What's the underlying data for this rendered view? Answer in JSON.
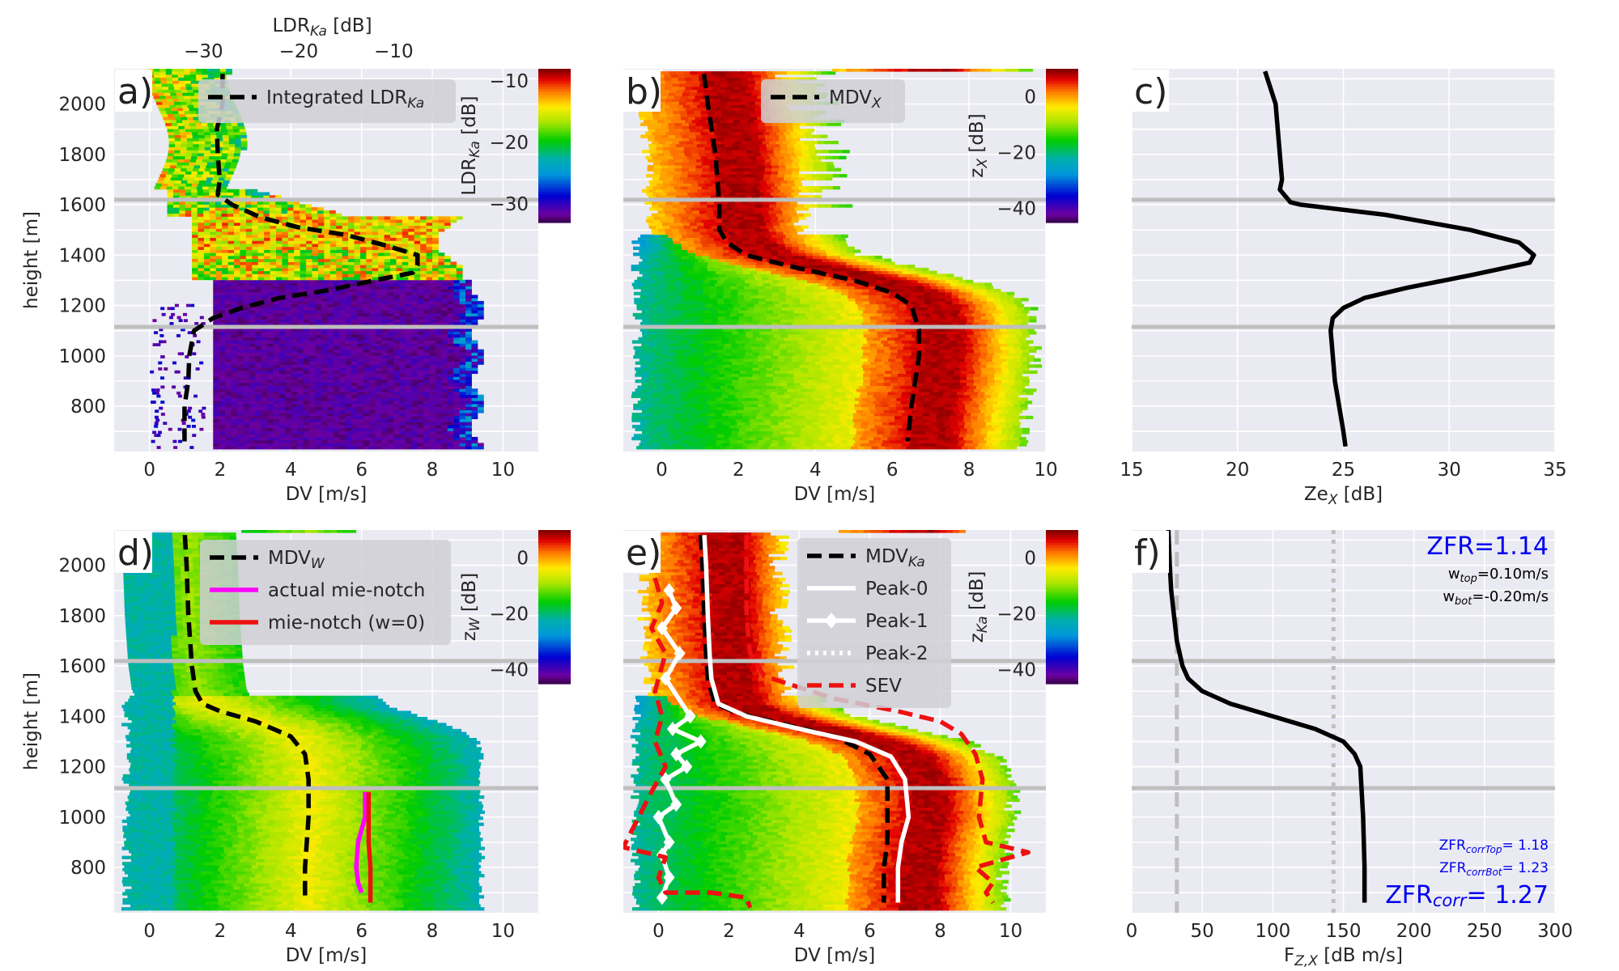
{
  "figure": {
    "panels_label_a": "a)",
    "panels_label_b": "b)",
    "panels_label_c": "c)",
    "panels_label_d": "d)",
    "panels_label_e": "e)",
    "panels_label_f": "f)"
  },
  "colors": {
    "plot_bg": "#eaeaf2",
    "grid": "#ffffff",
    "hline": "#bfbfbf",
    "text": "#262626",
    "blue_text": "#0000ee",
    "magenta": "#ff00ff",
    "red": "#ee1111"
  },
  "chart_data": [
    {
      "id": "a",
      "type": "heatmap",
      "xlabel": "DV [m/s]",
      "ylabel": "height [m]",
      "xlim": [
        -1,
        11
      ],
      "ylim": [
        620,
        2140
      ],
      "xticks": [
        0,
        2,
        4,
        6,
        8,
        10
      ],
      "yticks": [
        800,
        1000,
        1200,
        1400,
        1600,
        1800,
        2000
      ],
      "top_axis": {
        "label": "LDR",
        "label_sub": "Ka",
        "label_unit": " [dB]",
        "ticks": [
          -30,
          -20,
          -10
        ],
        "tick_labels": [
          "−30",
          "−20",
          "−10"
        ],
        "range": [
          -39.4,
          5.2
        ]
      },
      "colorbar": {
        "label": "LDR",
        "label_sub": "Ka",
        "label_unit": " [dB]",
        "ticks": [
          -30,
          -20,
          -10
        ],
        "tick_labels": [
          "−30",
          "−20",
          "−10"
        ],
        "range": [
          -33,
          -8
        ]
      },
      "hlines": [
        1620,
        1115
      ],
      "series": [
        {
          "name": "Integrated LDR",
          "name_sub": "Ka",
          "style": "dashed",
          "color": "#000000",
          "x_top": [
            -28,
            -28,
            -28.6,
            -28.5,
            -28.3,
            -28.5,
            -27,
            -24,
            -20,
            -15,
            -11,
            -7.5,
            -7.5,
            -8,
            -12,
            -17,
            -22,
            -26,
            -29,
            -31,
            -31.5,
            -31.6,
            -32,
            -32
          ],
          "y": [
            2120,
            2000,
            1900,
            1800,
            1700,
            1640,
            1600,
            1550,
            1510,
            1480,
            1440,
            1400,
            1360,
            1330,
            1300,
            1260,
            1230,
            1190,
            1150,
            1100,
            1000,
            900,
            800,
            660
          ]
        }
      ]
    },
    {
      "id": "b",
      "type": "heatmap",
      "xlabel": "DV [m/s]",
      "xlim": [
        -1,
        10
      ],
      "ylim": [
        620,
        2140
      ],
      "xticks": [
        0,
        2,
        4,
        6,
        8,
        10
      ],
      "colorbar": {
        "label": "z",
        "label_sub": "X",
        "label_unit": " [dB]",
        "ticks": [
          0,
          -20,
          -40
        ],
        "tick_labels": [
          "0",
          "−20",
          "−40"
        ],
        "range": [
          -45,
          10
        ]
      },
      "hlines": [
        1620,
        1115
      ],
      "series": [
        {
          "name": "MDV",
          "name_sub": "X",
          "style": "dashed",
          "color": "#000000",
          "x": [
            1.1,
            1.2,
            1.4,
            1.5,
            1.5,
            1.7,
            2.2,
            3.5,
            5.0,
            6.0,
            6.5,
            6.7,
            6.7,
            6.6,
            6.5,
            6.4
          ],
          "y": [
            2120,
            2000,
            1800,
            1600,
            1500,
            1450,
            1400,
            1350,
            1300,
            1250,
            1200,
            1100,
            1000,
            900,
            800,
            660
          ]
        }
      ]
    },
    {
      "id": "c",
      "type": "line",
      "xlabel": "Ze",
      "xlabel_sub": "X",
      "xlabel_unit": " [dB]",
      "xlim": [
        15,
        35
      ],
      "ylim": [
        620,
        2140
      ],
      "xticks": [
        15,
        20,
        25,
        30,
        35
      ],
      "hlines": [
        1620,
        1115
      ],
      "series": [
        {
          "name": "",
          "color": "#000000",
          "x": [
            21.3,
            21.8,
            21.9,
            22.0,
            22.1,
            22.0,
            22.3,
            22.5,
            23.0,
            27,
            31,
            33.3,
            34.0,
            33.8,
            31,
            28,
            26,
            25,
            24.5,
            24.4,
            24.5,
            24.6,
            24.8,
            25.0,
            25.1
          ],
          "y": [
            2130,
            2000,
            1900,
            1800,
            1700,
            1660,
            1630,
            1610,
            1600,
            1560,
            1500,
            1450,
            1400,
            1370,
            1320,
            1270,
            1230,
            1190,
            1150,
            1100,
            1000,
            900,
            800,
            700,
            640
          ]
        }
      ]
    },
    {
      "id": "d",
      "type": "heatmap",
      "xlabel": "DV [m/s]",
      "ylabel": "height [m]",
      "xlim": [
        -1,
        11
      ],
      "ylim": [
        620,
        2140
      ],
      "xticks": [
        0,
        2,
        4,
        6,
        8,
        10
      ],
      "yticks": [
        800,
        1000,
        1200,
        1400,
        1600,
        1800,
        2000
      ],
      "colorbar": {
        "label": "z",
        "label_sub": "W",
        "label_unit": " [dB]",
        "ticks": [
          0,
          -20,
          -40
        ],
        "tick_labels": [
          "0",
          "−20",
          "−40"
        ],
        "range": [
          -45,
          10
        ]
      },
      "hlines": [
        1620,
        1115
      ],
      "series": [
        {
          "name": "MDV",
          "name_sub": "W",
          "style": "dashed",
          "color": "#000000",
          "x": [
            1.0,
            1.05,
            1.1,
            1.2,
            1.3,
            1.5,
            2.0,
            3.0,
            4.0,
            4.4,
            4.5,
            4.5,
            4.45,
            4.4,
            4.4
          ],
          "y": [
            2120,
            2000,
            1800,
            1600,
            1500,
            1450,
            1420,
            1380,
            1320,
            1250,
            1150,
            1000,
            900,
            800,
            660
          ]
        },
        {
          "name": "actual mie-notch",
          "style": "solid",
          "color": "#ff00ff",
          "x": [
            6.1,
            6.1,
            6.0,
            5.9,
            5.85,
            5.9,
            6.0
          ],
          "y": [
            1100,
            1000,
            950,
            900,
            800,
            740,
            700
          ]
        },
        {
          "name": "mie-notch (w=0)",
          "style": "solid",
          "color": "#ee1111",
          "x": [
            6.2,
            6.2,
            6.2,
            6.25,
            6.25
          ],
          "y": [
            1100,
            1000,
            900,
            800,
            660
          ]
        }
      ]
    },
    {
      "id": "e",
      "type": "heatmap",
      "xlabel": "DV [m/s]",
      "xlim": [
        -1,
        11
      ],
      "ylim": [
        620,
        2140
      ],
      "xticks": [
        0,
        2,
        4,
        6,
        8,
        10
      ],
      "colorbar": {
        "label": "z",
        "label_sub": "Ka",
        "label_unit": " [dB]",
        "ticks": [
          0,
          -20,
          -40
        ],
        "tick_labels": [
          "0",
          "−20",
          "−40"
        ],
        "range": [
          -45,
          10
        ]
      },
      "hlines": [
        1620,
        1115
      ],
      "series": [
        {
          "name": "MDV",
          "name_sub": "Ka",
          "style": "dashed",
          "color": "#000000",
          "x": [
            1.2,
            1.25,
            1.3,
            1.35,
            1.4,
            1.6,
            2.3,
            3.5,
            5.0,
            6.0,
            6.5,
            6.5,
            6.5,
            6.4,
            6.4
          ],
          "y": [
            2120,
            2000,
            1800,
            1650,
            1550,
            1450,
            1410,
            1370,
            1320,
            1250,
            1150,
            1000,
            900,
            800,
            660
          ]
        },
        {
          "name": "Peak-0",
          "style": "solid",
          "color": "#ffffff",
          "x": [
            1.3,
            1.35,
            1.4,
            1.45,
            1.5,
            1.7,
            2.5,
            4.0,
            5.6,
            6.6,
            7.0,
            7.1,
            6.9,
            6.8,
            6.8
          ],
          "y": [
            2120,
            2000,
            1800,
            1650,
            1550,
            1450,
            1400,
            1350,
            1300,
            1240,
            1150,
            1000,
            900,
            800,
            660
          ]
        },
        {
          "name": "Peak-1",
          "style": "solid-marker",
          "color": "#ffffff",
          "x": [
            0.3,
            0.5,
            0.1,
            0.6,
            0.2,
            0.9,
            0.4,
            1.2,
            0.5,
            0.8,
            0.2,
            0.5,
            0.0,
            0.3,
            0.1,
            0.3,
            0.1
          ],
          "y": [
            1900,
            1830,
            1750,
            1650,
            1550,
            1400,
            1350,
            1300,
            1250,
            1200,
            1150,
            1050,
            1000,
            900,
            850,
            760,
            680
          ]
        },
        {
          "name": "Peak-2",
          "style": "dotted",
          "color": "#ffffff",
          "x": [],
          "y": []
        },
        {
          "name": "SEV",
          "style": "dashed",
          "color": "#ee1111",
          "x": [
            2.5,
            2.5,
            2.5,
            2.6,
            3.0,
            5.0,
            6.8,
            8.0,
            8.6,
            9.0,
            9.2,
            9.1,
            9.3,
            10.5,
            9.0,
            9.5,
            9.3,
            9.5
          ],
          "y": [
            2120,
            2000,
            1800,
            1650,
            1560,
            1470,
            1420,
            1380,
            1330,
            1250,
            1150,
            1000,
            900,
            860,
            800,
            740,
            700,
            660
          ]
        },
        {
          "name": "",
          "style": "dashed",
          "color": "#ee1111",
          "x": [
            -0.1,
            0.1,
            -0.2,
            0.2,
            -0.1,
            0.1,
            -0.1,
            0.2,
            -0.2,
            -1.0,
            0.2,
            0.0,
            0.2,
            1.5,
            2.5,
            2.6
          ],
          "y": [
            1950,
            1850,
            1750,
            1650,
            1500,
            1400,
            1300,
            1200,
            1100,
            880,
            840,
            760,
            700,
            700,
            680,
            640
          ]
        }
      ]
    },
    {
      "id": "f",
      "type": "line",
      "xlabel": "F",
      "xlabel_sub": "Z,X",
      "xlabel_unit": " [dB m/s]",
      "xlim": [
        0,
        300
      ],
      "ylim": [
        620,
        2140
      ],
      "xticks": [
        0,
        50,
        100,
        150,
        200,
        250,
        300
      ],
      "hlines": [
        1620,
        1115
      ],
      "vlines": [
        {
          "x": 32,
          "style": "dashed"
        },
        {
          "x": 143,
          "style": "dotted"
        }
      ],
      "series": [
        {
          "name": "",
          "color": "#000000",
          "x": [
            26,
            27,
            28,
            30,
            32,
            34,
            36,
            40,
            50,
            70,
            100,
            130,
            150,
            158,
            162,
            163,
            164,
            165,
            165
          ],
          "y": [
            2140,
            2000,
            1900,
            1800,
            1700,
            1650,
            1600,
            1550,
            1500,
            1450,
            1400,
            1350,
            1300,
            1250,
            1200,
            1100,
            1000,
            800,
            660
          ]
        }
      ],
      "annotations": {
        "zfr": "ZFR=1.14",
        "w_top_pre": "w",
        "w_top_sub": "top",
        "w_top_val": "=0.10m/s",
        "w_bot_pre": "w",
        "w_bot_sub": "bot",
        "w_bot_val": "=-0.20m/s",
        "corr_top_pre": "ZFR",
        "corr_top_sub": "corrTop",
        "corr_top_val": "= 1.18",
        "corr_bot_pre": "ZFR",
        "corr_bot_sub": "corrBot",
        "corr_bot_val": "= 1.23",
        "corr_pre": "ZFR",
        "corr_sub": "corr",
        "corr_val": "= 1.27"
      }
    }
  ]
}
